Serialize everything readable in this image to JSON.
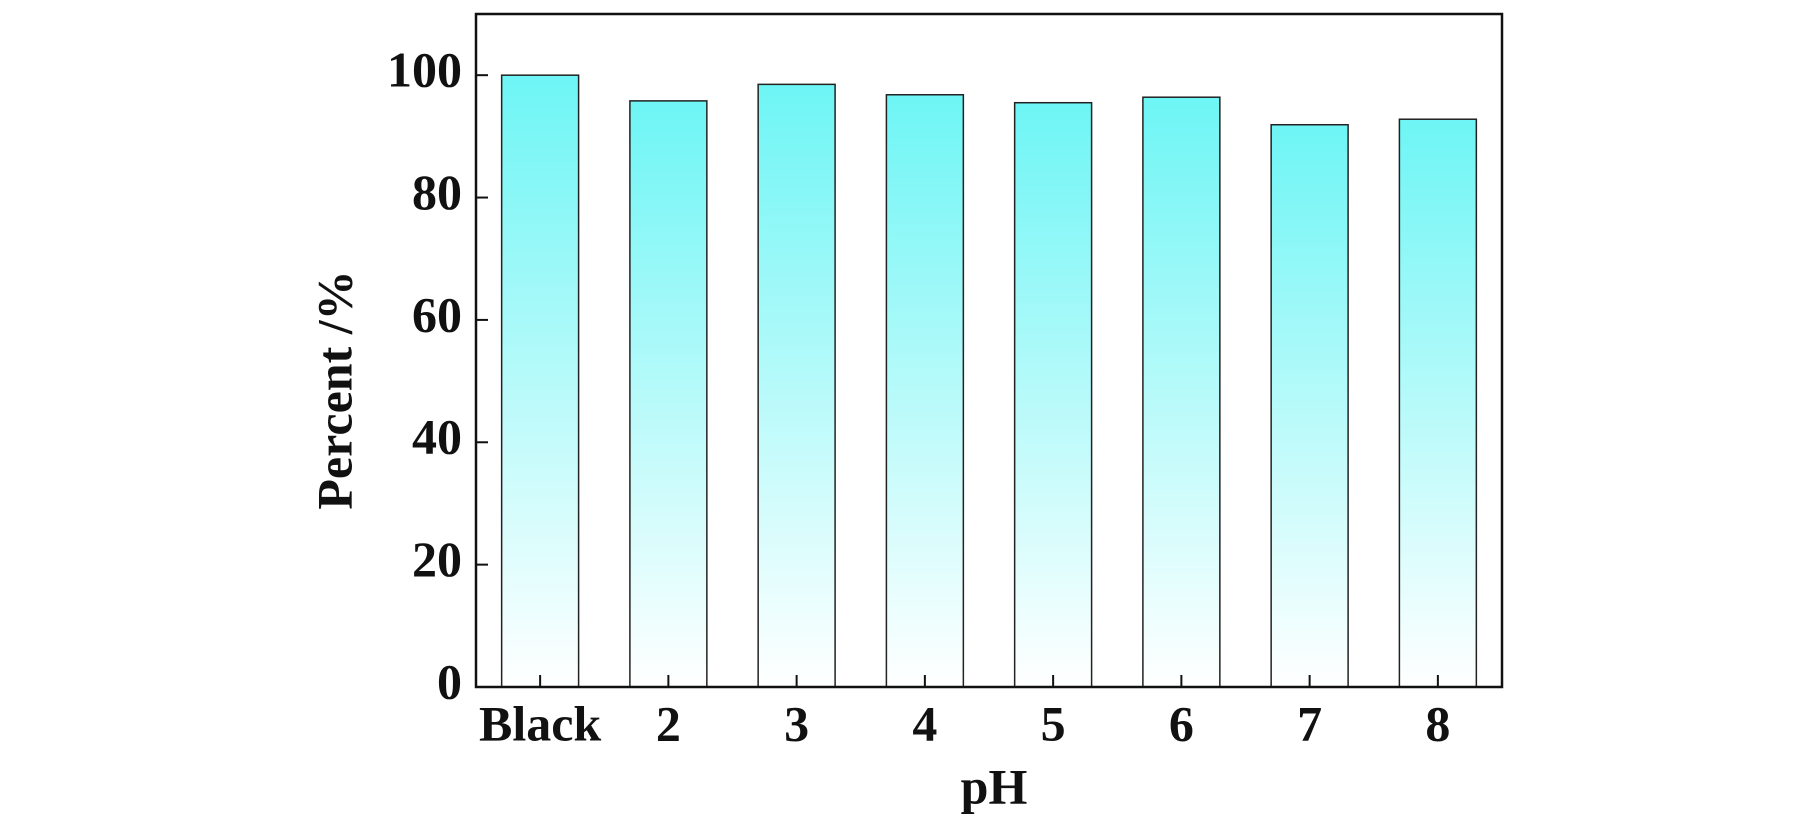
{
  "chart_data": {
    "type": "bar",
    "x_label": "pH",
    "y_label": "Percent /%",
    "categories": [
      "Black",
      "2",
      "3",
      "4",
      "5",
      "6",
      "7",
      "8"
    ],
    "values": [
      100,
      95.8,
      98.5,
      96.8,
      95.5,
      96.4,
      91.9,
      92.8
    ],
    "color": "#6ef5f5",
    "ylim": [
      0,
      110
    ],
    "yticks": [
      0,
      20,
      40,
      60,
      80,
      100
    ],
    "grid": false
  }
}
